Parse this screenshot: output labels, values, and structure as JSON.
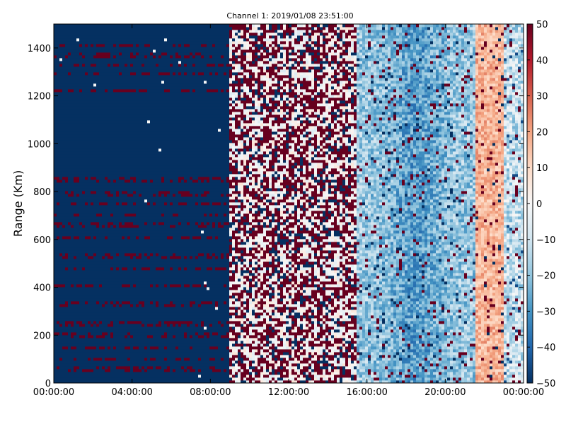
{
  "chart_data": {
    "type": "heatmap",
    "title": "Channel 1: 2019/01/08 23:51:00",
    "ylabel": "Range (Km)",
    "xlabel": "",
    "x_ticks": [
      "00:00:00",
      "04:00:00",
      "08:00:00",
      "12:00:00",
      "16:00:00",
      "20:00:00",
      "00:00:00"
    ],
    "x_range_hours": [
      0,
      24
    ],
    "y_ticks": [
      "0",
      "200",
      "400",
      "600",
      "800",
      "1000",
      "1200",
      "1400"
    ],
    "y_range": [
      0,
      1500
    ],
    "colorbar": {
      "min": -50,
      "max": 50,
      "ticks": [
        "−50",
        "−40",
        "−30",
        "−20",
        "−10",
        "0",
        "10",
        "20",
        "30",
        "40",
        "50"
      ],
      "colormap": "RdBu_r"
    },
    "regions": [
      {
        "from_hour": 0,
        "to_hour": 9,
        "dominant_value": -50,
        "description": "saturated low values"
      },
      {
        "from_hour": 9,
        "to_hour": 15,
        "dominant_value": 0,
        "description": "noisy, mixed saturated values"
      },
      {
        "from_hour": 15.5,
        "to_hour": 21,
        "dominant_value": -20,
        "description": "light blue field"
      },
      {
        "from_hour": 21.5,
        "to_hour": 23,
        "dominant_value": 20,
        "description": "light red band"
      }
    ],
    "grid": false,
    "legend": "none"
  }
}
